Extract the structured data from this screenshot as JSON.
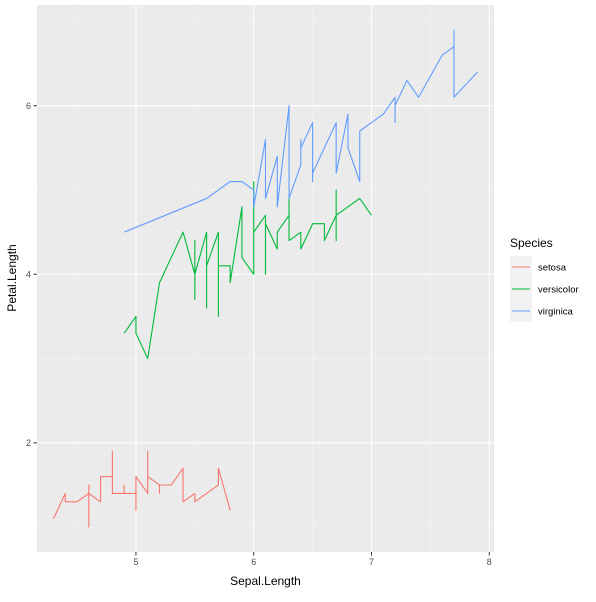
{
  "chart_data": {
    "type": "line",
    "xlabel": "Sepal.Length",
    "ylabel": "Petal.Length",
    "xlim": [
      4.16,
      8.04
    ],
    "ylim": [
      0.705,
      7.195
    ],
    "x_ticks": [
      5,
      6,
      7,
      8
    ],
    "y_ticks": [
      2,
      4,
      6
    ],
    "grid": true,
    "legend": {
      "title": "Species",
      "placement": "right"
    },
    "series": [
      {
        "name": "setosa",
        "color": "#F8766D",
        "points": [
          [
            4.3,
            1.1
          ],
          [
            4.4,
            1.4
          ],
          [
            4.4,
            1.3
          ],
          [
            4.4,
            1.3
          ],
          [
            4.5,
            1.3
          ],
          [
            4.6,
            1.4
          ],
          [
            4.6,
            1.5
          ],
          [
            4.6,
            1.0
          ],
          [
            4.6,
            1.4
          ],
          [
            4.7,
            1.3
          ],
          [
            4.7,
            1.6
          ],
          [
            4.8,
            1.6
          ],
          [
            4.8,
            1.4
          ],
          [
            4.8,
            1.6
          ],
          [
            4.8,
            1.9
          ],
          [
            4.8,
            1.4
          ],
          [
            4.9,
            1.4
          ],
          [
            4.9,
            1.5
          ],
          [
            4.9,
            1.5
          ],
          [
            4.9,
            1.4
          ],
          [
            5.0,
            1.4
          ],
          [
            5.0,
            1.5
          ],
          [
            5.0,
            1.6
          ],
          [
            5.0,
            1.2
          ],
          [
            5.0,
            1.3
          ],
          [
            5.0,
            1.4
          ],
          [
            5.0,
            1.5
          ],
          [
            5.0,
            1.6
          ],
          [
            5.1,
            1.4
          ],
          [
            5.1,
            1.4
          ],
          [
            5.1,
            1.5
          ],
          [
            5.1,
            1.5
          ],
          [
            5.1,
            1.7
          ],
          [
            5.1,
            1.5
          ],
          [
            5.1,
            1.9
          ],
          [
            5.1,
            1.6
          ],
          [
            5.2,
            1.5
          ],
          [
            5.2,
            1.4
          ],
          [
            5.2,
            1.5
          ],
          [
            5.3,
            1.5
          ],
          [
            5.4,
            1.7
          ],
          [
            5.4,
            1.5
          ],
          [
            5.4,
            1.7
          ],
          [
            5.4,
            1.5
          ],
          [
            5.4,
            1.3
          ],
          [
            5.5,
            1.4
          ],
          [
            5.5,
            1.3
          ],
          [
            5.7,
            1.5
          ],
          [
            5.7,
            1.7
          ],
          [
            5.8,
            1.2
          ]
        ]
      },
      {
        "name": "versicolor",
        "color": "#00BA38",
        "points": [
          [
            4.9,
            3.3
          ],
          [
            5.0,
            3.5
          ],
          [
            5.0,
            3.3
          ],
          [
            5.1,
            3.0
          ],
          [
            5.2,
            3.9
          ],
          [
            5.4,
            4.5
          ],
          [
            5.5,
            4.0
          ],
          [
            5.5,
            4.4
          ],
          [
            5.5,
            3.7
          ],
          [
            5.5,
            3.8
          ],
          [
            5.5,
            4.0
          ],
          [
            5.6,
            4.5
          ],
          [
            5.6,
            3.6
          ],
          [
            5.6,
            3.9
          ],
          [
            5.6,
            4.2
          ],
          [
            5.6,
            4.1
          ],
          [
            5.7,
            4.5
          ],
          [
            5.7,
            3.5
          ],
          [
            5.7,
            4.2
          ],
          [
            5.7,
            4.2
          ],
          [
            5.7,
            4.1
          ],
          [
            5.8,
            4.1
          ],
          [
            5.8,
            4.0
          ],
          [
            5.8,
            3.9
          ],
          [
            5.9,
            4.8
          ],
          [
            5.9,
            4.2
          ],
          [
            6.0,
            4.0
          ],
          [
            6.0,
            4.5
          ],
          [
            6.0,
            5.1
          ],
          [
            6.0,
            4.5
          ],
          [
            6.1,
            4.7
          ],
          [
            6.1,
            4.0
          ],
          [
            6.1,
            4.7
          ],
          [
            6.1,
            4.6
          ],
          [
            6.2,
            4.3
          ],
          [
            6.2,
            4.5
          ],
          [
            6.3,
            4.7
          ],
          [
            6.3,
            4.9
          ],
          [
            6.3,
            4.4
          ],
          [
            6.4,
            4.5
          ],
          [
            6.4,
            4.3
          ],
          [
            6.5,
            4.6
          ],
          [
            6.6,
            4.6
          ],
          [
            6.6,
            4.4
          ],
          [
            6.7,
            4.7
          ],
          [
            6.7,
            4.4
          ],
          [
            6.7,
            5.0
          ],
          [
            6.7,
            4.7
          ],
          [
            6.8,
            4.8
          ],
          [
            6.9,
            4.9
          ],
          [
            7.0,
            4.7
          ]
        ]
      },
      {
        "name": "virginica",
        "color": "#619CFF",
        "points": [
          [
            4.9,
            4.5
          ],
          [
            5.6,
            4.9
          ],
          [
            5.7,
            5.0
          ],
          [
            5.8,
            5.1
          ],
          [
            5.8,
            5.1
          ],
          [
            5.8,
            5.1
          ],
          [
            5.9,
            5.1
          ],
          [
            6.0,
            5.0
          ],
          [
            6.0,
            4.8
          ],
          [
            6.1,
            5.6
          ],
          [
            6.1,
            4.9
          ],
          [
            6.2,
            5.4
          ],
          [
            6.2,
            4.8
          ],
          [
            6.3,
            6.0
          ],
          [
            6.3,
            5.1
          ],
          [
            6.3,
            5.0
          ],
          [
            6.3,
            5.6
          ],
          [
            6.3,
            4.9
          ],
          [
            6.4,
            5.3
          ],
          [
            6.4,
            5.5
          ],
          [
            6.4,
            5.6
          ],
          [
            6.4,
            5.5
          ],
          [
            6.5,
            5.8
          ],
          [
            6.5,
            5.5
          ],
          [
            6.5,
            5.1
          ],
          [
            6.5,
            5.2
          ],
          [
            6.7,
            5.8
          ],
          [
            6.7,
            5.7
          ],
          [
            6.7,
            5.6
          ],
          [
            6.7,
            5.2
          ],
          [
            6.8,
            5.9
          ],
          [
            6.8,
            5.5
          ],
          [
            6.9,
            5.1
          ],
          [
            6.9,
            5.7
          ],
          [
            7.1,
            5.9
          ],
          [
            7.2,
            6.1
          ],
          [
            7.2,
            5.8
          ],
          [
            7.2,
            6.0
          ],
          [
            7.3,
            6.3
          ],
          [
            7.4,
            6.1
          ],
          [
            7.6,
            6.6
          ],
          [
            7.7,
            6.7
          ],
          [
            7.7,
            6.9
          ],
          [
            7.7,
            6.7
          ],
          [
            7.7,
            6.1
          ],
          [
            7.9,
            6.4
          ]
        ]
      }
    ]
  }
}
